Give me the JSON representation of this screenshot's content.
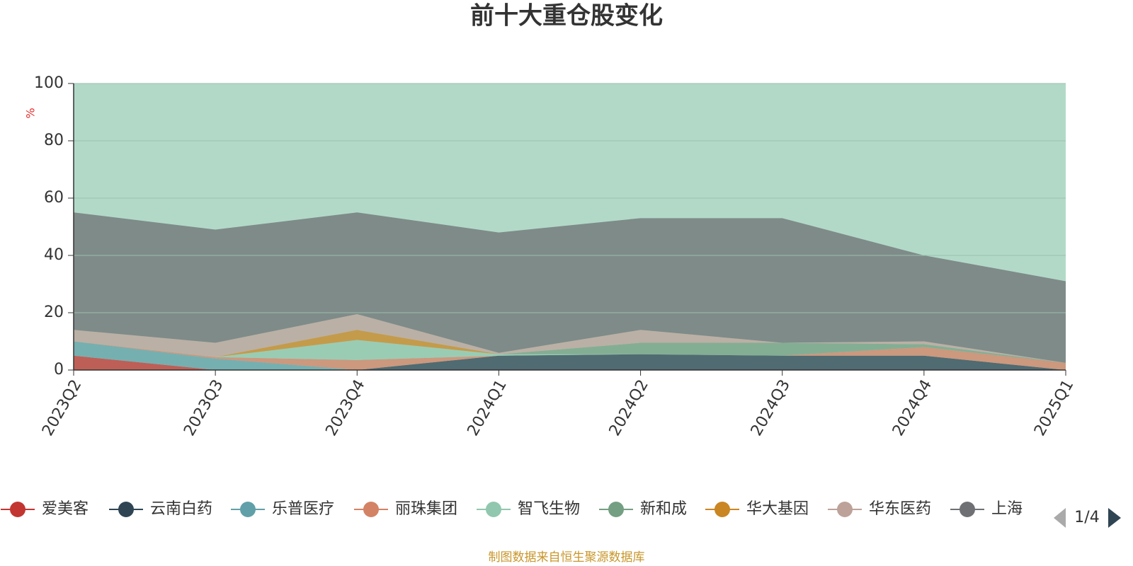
{
  "chart_data": {
    "type": "stacked_area",
    "title": "前十大重仓股变化",
    "y_label": "%",
    "categories": [
      "2023Q2",
      "2023Q3",
      "2023Q4",
      "2024Q1",
      "2024Q2",
      "2024Q3",
      "2024Q4",
      "2025Q1"
    ],
    "ylim": [
      0,
      100
    ],
    "yticks": [
      0,
      20,
      40,
      60,
      80,
      100
    ],
    "grid": true,
    "series": [
      {
        "name": "爱美客",
        "color": "#c23531",
        "values": [
          5,
          0,
          0,
          0,
          0,
          0,
          0,
          0
        ]
      },
      {
        "name": "云南白药",
        "color": "#2f4554",
        "values": [
          0,
          0,
          0,
          5,
          5.5,
          5,
          5,
          0
        ]
      },
      {
        "name": "乐普医疗",
        "color": "#61a0a8",
        "values": [
          5,
          4,
          0,
          0,
          0,
          0,
          0,
          0
        ]
      },
      {
        "name": "丽珠集团",
        "color": "#d48265",
        "values": [
          0,
          0.5,
          3.5,
          0,
          0,
          0,
          3,
          2.5
        ]
      },
      {
        "name": "智飞生物",
        "color": "#91c7ae",
        "values": [
          0,
          0,
          7,
          0.5,
          0,
          0,
          0,
          0
        ]
      },
      {
        "name": "新和成",
        "color": "#749f83",
        "values": [
          0,
          0,
          0,
          0,
          4,
          4.5,
          1,
          0
        ]
      },
      {
        "name": "华大基因",
        "color": "#ca8622",
        "values": [
          0,
          0,
          3.5,
          0,
          0,
          0,
          0,
          0
        ]
      },
      {
        "name": "华东医药",
        "color": "#bda29a",
        "values": [
          4,
          5,
          5.5,
          0.5,
          4.5,
          0,
          1,
          0
        ]
      },
      {
        "name": "上海",
        "color": "#6e7074",
        "values": [
          41,
          39.5,
          35.5,
          42,
          39,
          43.5,
          30,
          28.5
        ]
      }
    ],
    "legend_page": "1/4",
    "source": "制图数据来自恒生聚源数据库"
  }
}
